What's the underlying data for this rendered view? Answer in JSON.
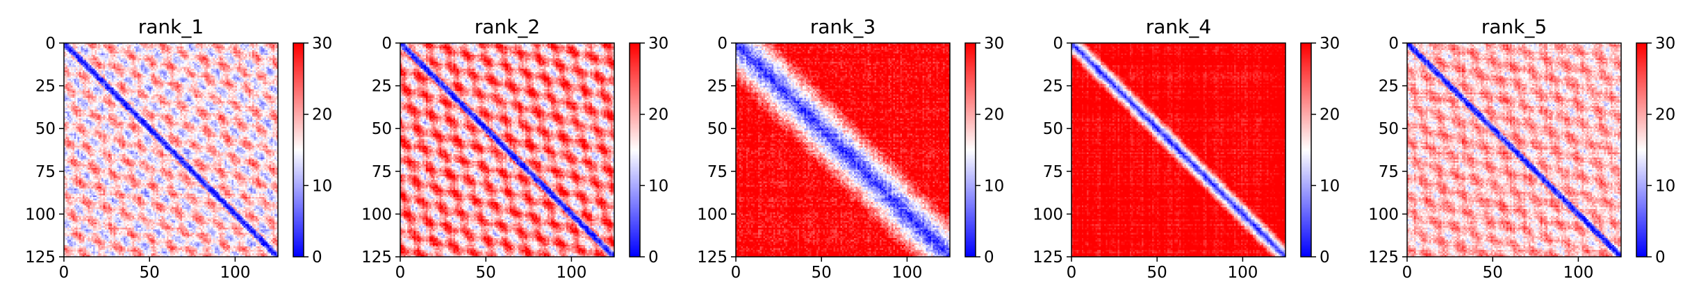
{
  "chart_data": [
    {
      "type": "heatmap",
      "title": "rank_1",
      "pattern": "banded",
      "matrix_size": 125,
      "xlim": [
        0,
        125
      ],
      "ylim": [
        125,
        0
      ],
      "xticks": [
        0,
        50,
        100
      ],
      "yticks": [
        0,
        25,
        50,
        75,
        100,
        125
      ],
      "colorbar": {
        "min": 0,
        "max": 30,
        "ticks": [
          0,
          10,
          20,
          30
        ],
        "colormap": "bwr"
      },
      "grid": false
    },
    {
      "type": "heatmap",
      "title": "rank_2",
      "pattern": "banded-strong",
      "matrix_size": 125,
      "xlim": [
        0,
        125
      ],
      "ylim": [
        125,
        0
      ],
      "xticks": [
        0,
        50,
        100
      ],
      "yticks": [
        0,
        25,
        50,
        75,
        100,
        125
      ],
      "colorbar": {
        "min": 0,
        "max": 30,
        "ticks": [
          0,
          10,
          20,
          30
        ],
        "colormap": "bwr"
      },
      "grid": false
    },
    {
      "type": "heatmap",
      "title": "rank_3",
      "pattern": "wide-diagonal",
      "matrix_size": 125,
      "xlim": [
        0,
        125
      ],
      "ylim": [
        125,
        0
      ],
      "xticks": [
        0,
        50,
        100
      ],
      "yticks": [
        0,
        25,
        50,
        75,
        100,
        125
      ],
      "colorbar": {
        "min": 0,
        "max": 30,
        "ticks": [
          0,
          10,
          20,
          30
        ],
        "colormap": "bwr"
      },
      "grid": false
    },
    {
      "type": "heatmap",
      "title": "rank_4",
      "pattern": "narrow-diagonal",
      "matrix_size": 125,
      "xlim": [
        0,
        125
      ],
      "ylim": [
        125,
        0
      ],
      "xticks": [
        0,
        50,
        100
      ],
      "yticks": [
        0,
        25,
        50,
        75,
        100,
        125
      ],
      "colorbar": {
        "min": 0,
        "max": 30,
        "ticks": [
          0,
          10,
          20,
          30
        ],
        "colormap": "bwr"
      },
      "grid": false
    },
    {
      "type": "heatmap",
      "title": "rank_5",
      "pattern": "banded-light",
      "matrix_size": 125,
      "xlim": [
        0,
        125
      ],
      "ylim": [
        125,
        0
      ],
      "xticks": [
        0,
        50,
        100
      ],
      "yticks": [
        0,
        25,
        50,
        75,
        100,
        125
      ],
      "colorbar": {
        "min": 0,
        "max": 30,
        "ticks": [
          0,
          10,
          20,
          30
        ],
        "colormap": "bwr"
      },
      "grid": false
    }
  ],
  "colors": {
    "low": "#0000ff",
    "mid": "#ffffff",
    "high": "#ff0000",
    "axis": "#000000"
  }
}
